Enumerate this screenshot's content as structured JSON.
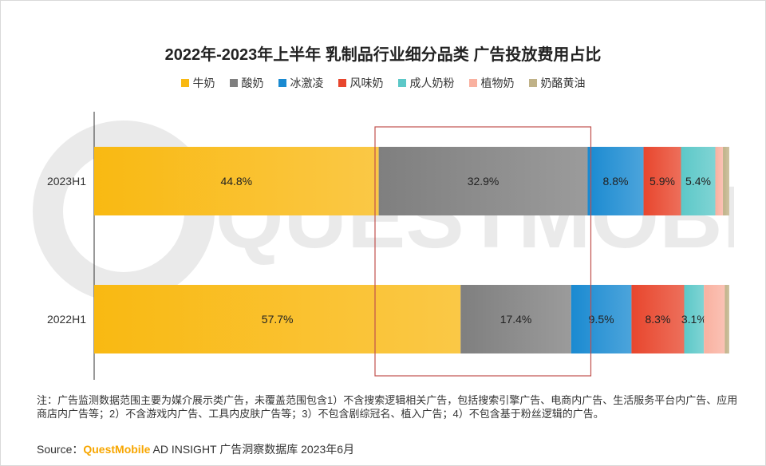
{
  "chart_data": {
    "type": "bar",
    "orientation": "horizontal",
    "stacked": true,
    "normalized": true,
    "title": "2022年-2023年上半年 乳制品行业细分品类 广告投放费用占比",
    "categories": [
      "2023H1",
      "2022H1"
    ],
    "series": [
      {
        "name": "牛奶",
        "values": [
          44.8,
          57.7
        ],
        "labels": [
          "44.8%",
          "57.7%"
        ],
        "color": "#f9b912"
      },
      {
        "name": "酸奶",
        "values": [
          32.9,
          17.4
        ],
        "labels": [
          "32.9%",
          "17.4%"
        ],
        "color": "#7f7f7f"
      },
      {
        "name": "冰激凌",
        "values": [
          8.8,
          9.5
        ],
        "labels": [
          "8.8%",
          "9.5%"
        ],
        "color": "#1a8ad1"
      },
      {
        "name": "风味奶",
        "values": [
          5.9,
          8.3
        ],
        "labels": [
          "5.9%",
          "8.3%"
        ],
        "color": "#e8462d"
      },
      {
        "name": "成人奶粉",
        "values": [
          5.4,
          3.1
        ],
        "labels": [
          "5.4%",
          "3.1%"
        ],
        "color": "#5cc8c8"
      },
      {
        "name": "植物奶",
        "values": [
          1.2,
          3.3
        ],
        "labels": [
          "",
          ""
        ],
        "color": "#f9b1a0"
      },
      {
        "name": "奶酪黄油",
        "values": [
          1.0,
          0.7
        ],
        "labels": [
          "",
          ""
        ],
        "color": "#c0b288"
      }
    ],
    "xlim": [
      0,
      100
    ],
    "highlight": {
      "series": "酸奶",
      "color": "#c0504d"
    }
  },
  "note": "注：广告监测数据范围主要为媒介展示类广告，未覆盖范围包含1）不含搜索逻辑相关广告，包括搜索引擎广告、电商内广告、生活服务平台内广告、应用商店内广告等；2）不含游戏内广告、工具内皮肤广告等；3）不包含剧综冠名、植入广告；4）不包含基于粉丝逻辑的广告。",
  "source": {
    "prefix": "Source：",
    "brand": "QuestMobile",
    "text": " AD INSIGHT 广告洞察数据库 2023年6月"
  },
  "watermark": "QUESTMOBILE"
}
